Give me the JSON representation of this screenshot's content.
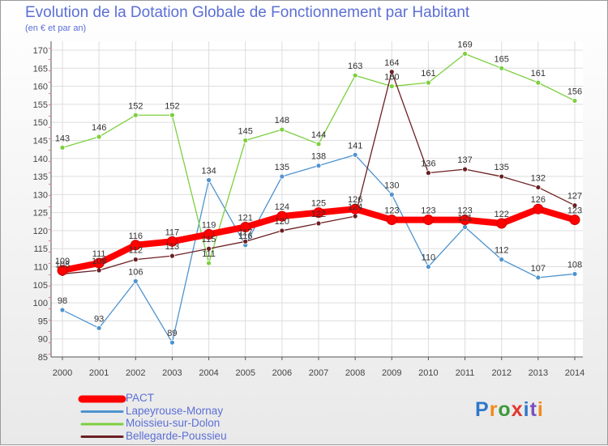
{
  "chart_data": {
    "type": "line",
    "title": "Evolution de la Dotation Globale de Fonctionnement par Habitant",
    "subtitle": "(en € et par an)",
    "x": [
      "2000",
      "2001",
      "2002",
      "2003",
      "2004",
      "2005",
      "2006",
      "2007",
      "2008",
      "2009",
      "2010",
      "2011",
      "2012",
      "2013",
      "2014"
    ],
    "ylim": [
      85,
      170
    ],
    "yticks": [
      85,
      90,
      95,
      100,
      105,
      110,
      115,
      120,
      125,
      130,
      135,
      140,
      145,
      150,
      155,
      160,
      165,
      170
    ],
    "grid": true,
    "legend_position": "bottom-left",
    "series": [
      {
        "name": "PACT",
        "color": "#ff0000",
        "emphasis": true,
        "values": [
          109,
          111,
          116,
          117,
          119,
          121,
          124,
          125,
          126,
          123,
          123,
          123,
          122,
          126,
          123
        ],
        "labels": [
          "109",
          "111",
          "116",
          "117",
          "119",
          "121",
          "124",
          "125",
          "126",
          "123",
          "123",
          "123",
          "122",
          "126",
          "123"
        ]
      },
      {
        "name": "Lapeyrouse-Mornay",
        "color": "#4f93cf",
        "values": [
          98,
          93,
          106,
          89,
          134,
          116,
          135,
          138,
          141,
          130,
          110,
          121,
          112,
          107,
          108
        ],
        "labels": [
          "98",
          "93",
          "106",
          "89",
          "134",
          "116",
          "135",
          "138",
          "141",
          "130",
          "110",
          "121",
          "112",
          "107",
          "108"
        ]
      },
      {
        "name": "Moissieu-sur-Dolon",
        "color": "#7ccf3f",
        "values": [
          143,
          146,
          152,
          152,
          111,
          145,
          148,
          144,
          163,
          160,
          161,
          169,
          165,
          161,
          156
        ],
        "labels": [
          "143",
          "146",
          "152",
          "152",
          "111",
          "145",
          "148",
          "144",
          "163",
          "160",
          "161",
          "169",
          "165",
          "161",
          "156"
        ]
      },
      {
        "name": "Bellegarde-Poussieu",
        "color": "#6b1f22",
        "values": [
          108,
          109,
          112,
          113,
          115,
          117,
          120,
          122,
          124,
          164,
          136,
          137,
          135,
          132,
          127
        ],
        "labels": [
          "108",
          "109",
          "112",
          "113",
          "115",
          "117",
          "120",
          "122",
          "124",
          "164",
          "136",
          "137",
          "135",
          "132",
          "127"
        ]
      }
    ]
  },
  "logo": {
    "text": "Proxiti",
    "letters": [
      "P",
      "r",
      "o",
      "x",
      "i",
      "t",
      "i"
    ]
  }
}
